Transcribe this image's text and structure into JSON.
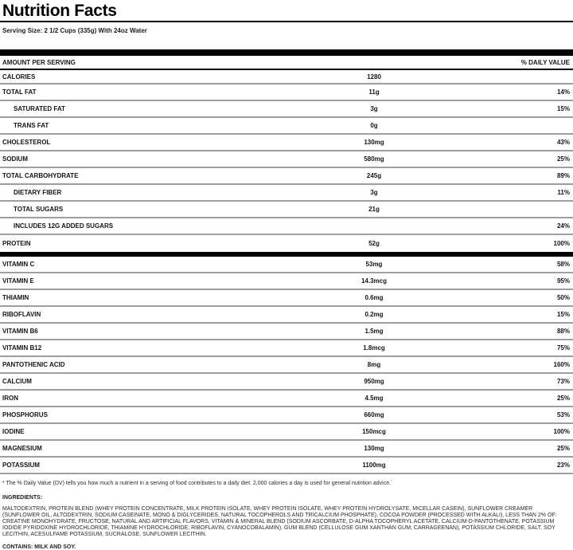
{
  "header": {
    "title": "Nutrition Facts",
    "serving_size": "Serving Size: 2 1/2 Cups (335g) With 24oz Water"
  },
  "table": {
    "col_amount": "AMOUNT PER SERVING",
    "col_dv": "% DAILY VALUE",
    "calories": {
      "label": "CALORIES",
      "amount": "1280",
      "dv": ""
    },
    "macro_rows": [
      {
        "label": "TOTAL FAT",
        "amount": "11g",
        "dv": "14%",
        "indent": false
      },
      {
        "label": "SATURATED FAT",
        "amount": "3g",
        "dv": "15%",
        "indent": true
      },
      {
        "label": "TRANS FAT",
        "amount": "0g",
        "dv": "",
        "indent": true
      },
      {
        "label": "CHOLESTEROL",
        "amount": "130mg",
        "dv": "43%",
        "indent": false
      },
      {
        "label": "SODIUM",
        "amount": "580mg",
        "dv": "25%",
        "indent": false
      },
      {
        "label": "TOTAL CARBOHYDRATE",
        "amount": "245g",
        "dv": "89%",
        "indent": false
      },
      {
        "label": "DIETARY FIBER",
        "amount": "3g",
        "dv": "11%",
        "indent": true
      },
      {
        "label": "TOTAL SUGARS",
        "amount": "21g",
        "dv": "",
        "indent": true
      },
      {
        "label": "INCLUDES 12G ADDED SUGARS",
        "amount": "",
        "dv": "24%",
        "indent": true
      },
      {
        "label": "PROTEIN",
        "amount": "52g",
        "dv": "100%",
        "indent": false
      }
    ],
    "micro_rows": [
      {
        "label": "VITAMIN C",
        "amount": "53mg",
        "dv": "58%",
        "indent": false
      },
      {
        "label": "VITAMIN E",
        "amount": "14.3mcg",
        "dv": "95%",
        "indent": false
      },
      {
        "label": "THIAMIN",
        "amount": "0.6mg",
        "dv": "50%",
        "indent": false
      },
      {
        "label": "RIBOFLAVIN",
        "amount": "0.2mg",
        "dv": "15%",
        "indent": false
      },
      {
        "label": "VITAMIN B6",
        "amount": "1.5mg",
        "dv": "88%",
        "indent": false
      },
      {
        "label": "VITAMIN B12",
        "amount": "1.8mcg",
        "dv": "75%",
        "indent": false
      },
      {
        "label": "PANTOTHENIC ACID",
        "amount": "8mg",
        "dv": "160%",
        "indent": false
      },
      {
        "label": "CALCIUM",
        "amount": "950mg",
        "dv": "73%",
        "indent": false
      },
      {
        "label": "IRON",
        "amount": "4.5mg",
        "dv": "25%",
        "indent": false
      },
      {
        "label": "PHOSPHORUS",
        "amount": "660mg",
        "dv": "53%",
        "indent": false
      },
      {
        "label": "IODINE",
        "amount": "150mcg",
        "dv": "100%",
        "indent": false
      },
      {
        "label": "MAGNESIUM",
        "amount": "130mg",
        "dv": "25%",
        "indent": false
      },
      {
        "label": "POTASSIUM",
        "amount": "1100mg",
        "dv": "23%",
        "indent": false
      }
    ]
  },
  "footnote": "* The % Daily Value (DV) tells you how much a nutrient in a serving of food contributes to a daily diet. 2,000 calories a day is used for general nutrition advice.´",
  "ingredients": {
    "heading": "INGREDIENTS:",
    "text": "MALTODEXTRIN, PROTEIN BLEND (WHEY PROTEIN CONCENTRATE, MILK PROTEIN ISOLATE, WHEY PROTEIN ISOLATE, WHEY PROTEIN HYDROLYSATE, MICELLAR CASEIN), SUNFLOWER CREAMER (SUNFLOWER OIL, ALTODEXTRIN, SODIUM CASEINATE, MONO & DIGLYCERIDES, NATURAL TOCOPHEROLS AND TRICALCIUM PHOSPHATE), COCOA POWDER (PROCESSED WITH ALKALI), LESS THAN 2% OF: CREATINE MONOHYDRATE, FRUCTOSE, NATURAL AND ARTIFICIAL FLAVORS, VITAMIN & MINERAL BLEND (SODIUM ASCORBATE, D-ALPHA TOCOPHERYL ACETATE, CALCIUM-D-PANTOTHENATE, POTASSIUM IODIDE PYRIDOXINE HYDROCHLORIDE, THIAMINE HYDROCHLORIDE, RIBOFLAVIN, CYANOCOBALAMIN), GUM BLEND (CELLULOSE GUM XANTHAN GUM, CARRAGEENAN), POTASSIUM CHLORIDE, SALT, SOY LECITHIN, ACESULFAME POTASSIUM, SUCRALOSE, SUNFLOWER LECITHIN.",
    "contains": "CONTAINS: MILK AND SOY."
  },
  "colors": {
    "ink": "#141414",
    "separator": "#9e9e9e",
    "bar": "#000000"
  }
}
